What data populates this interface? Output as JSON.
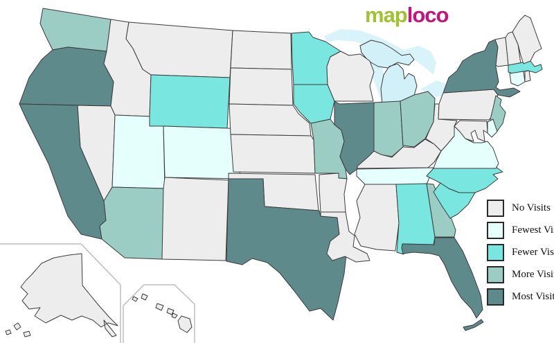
{
  "logo": {
    "part1": "map",
    "part2": "loco",
    "part1_color": "#a0c332",
    "part2_color": "#c4137c"
  },
  "legend": {
    "items": [
      {
        "level": "none",
        "label": "No Visits",
        "color": "#ededed"
      },
      {
        "level": "fewest",
        "label": "Fewest Visits",
        "color": "#e4fffc"
      },
      {
        "level": "fewer",
        "label": "Fewer Visits",
        "color": "#79e7e0"
      },
      {
        "level": "more",
        "label": "More Visits",
        "color": "#9bcdc5"
      },
      {
        "level": "most",
        "label": "Most Visits",
        "color": "#5f8a8c"
      }
    ],
    "swatch_border_color": "#2a2a2a"
  },
  "map": {
    "background": "#ffffff",
    "water_color": "#d9f3fa",
    "state_border_color": "#3a3a3a",
    "inset_border_color": "#bdbdbd",
    "states": [
      {
        "id": "mi",
        "name": "Michigan",
        "level": "fewest",
        "color": "#d2f0f8"
      },
      {
        "id": "wa",
        "name": "Washington",
        "level": "more"
      },
      {
        "id": "or",
        "name": "Oregon",
        "level": "most"
      },
      {
        "id": "ca",
        "name": "California",
        "level": "most"
      },
      {
        "id": "nv",
        "name": "Nevada",
        "level": "none"
      },
      {
        "id": "id",
        "name": "Idaho",
        "level": "none"
      },
      {
        "id": "mt",
        "name": "Montana",
        "level": "none"
      },
      {
        "id": "wy",
        "name": "Wyoming",
        "level": "fewer"
      },
      {
        "id": "ut",
        "name": "Utah",
        "level": "fewest"
      },
      {
        "id": "co",
        "name": "Colorado",
        "level": "fewest"
      },
      {
        "id": "az",
        "name": "Arizona",
        "level": "more"
      },
      {
        "id": "nm",
        "name": "New Mexico",
        "level": "none"
      },
      {
        "id": "nd",
        "name": "North Dakota",
        "level": "none"
      },
      {
        "id": "sd",
        "name": "South Dakota",
        "level": "none"
      },
      {
        "id": "ne",
        "name": "Nebraska",
        "level": "none"
      },
      {
        "id": "ks",
        "name": "Kansas",
        "level": "none"
      },
      {
        "id": "ok",
        "name": "Oklahoma",
        "level": "none"
      },
      {
        "id": "tx",
        "name": "Texas",
        "level": "most"
      },
      {
        "id": "mn",
        "name": "Minnesota",
        "level": "fewer"
      },
      {
        "id": "ia",
        "name": "Iowa",
        "level": "fewer"
      },
      {
        "id": "mo",
        "name": "Missouri",
        "level": "more"
      },
      {
        "id": "ar",
        "name": "Arkansas",
        "level": "none"
      },
      {
        "id": "la",
        "name": "Louisiana",
        "level": "none"
      },
      {
        "id": "wi",
        "name": "Wisconsin",
        "level": "none"
      },
      {
        "id": "il",
        "name": "Illinois",
        "level": "most"
      },
      {
        "id": "in",
        "name": "Indiana",
        "level": "more"
      },
      {
        "id": "oh",
        "name": "Ohio",
        "level": "more"
      },
      {
        "id": "ky",
        "name": "Kentucky",
        "level": "none"
      },
      {
        "id": "tn",
        "name": "Tennessee",
        "level": "fewest"
      },
      {
        "id": "ms",
        "name": "Mississippi",
        "level": "none"
      },
      {
        "id": "al",
        "name": "Alabama",
        "level": "fewer"
      },
      {
        "id": "ga",
        "name": "Georgia",
        "level": "more"
      },
      {
        "id": "fl",
        "name": "Florida",
        "level": "most"
      },
      {
        "id": "sc",
        "name": "South Carolina",
        "level": "fewer"
      },
      {
        "id": "nc",
        "name": "North Carolina",
        "level": "fewer"
      },
      {
        "id": "va",
        "name": "Virginia",
        "level": "fewest"
      },
      {
        "id": "wv",
        "name": "West Virginia",
        "level": "none"
      },
      {
        "id": "pa",
        "name": "Pennsylvania",
        "level": "none"
      },
      {
        "id": "ny",
        "name": "New York",
        "level": "most"
      },
      {
        "id": "nj",
        "name": "New Jersey",
        "level": "more"
      },
      {
        "id": "de",
        "name": "Delaware",
        "level": "fewest"
      },
      {
        "id": "md",
        "name": "Maryland",
        "level": "none"
      },
      {
        "id": "vt",
        "name": "Vermont",
        "level": "none"
      },
      {
        "id": "nh",
        "name": "New Hampshire",
        "level": "none"
      },
      {
        "id": "ma",
        "name": "Massachusetts",
        "level": "fewer"
      },
      {
        "id": "ct",
        "name": "Connecticut",
        "level": "fewest"
      },
      {
        "id": "ri",
        "name": "Rhode Island",
        "level": "none"
      },
      {
        "id": "me",
        "name": "Maine",
        "level": "none"
      },
      {
        "id": "ak",
        "name": "Alaska",
        "level": "none"
      },
      {
        "id": "hi",
        "name": "Hawaii",
        "level": "none"
      }
    ]
  }
}
